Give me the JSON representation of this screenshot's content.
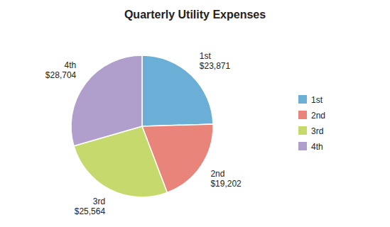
{
  "chart_data": {
    "type": "pie",
    "title": "Quarterly Utility Expenses",
    "categories": [
      "1st",
      "2nd",
      "3rd",
      "4th"
    ],
    "values": [
      23871,
      19202,
      25564,
      28704
    ],
    "value_labels": [
      "$23,871",
      "$19,202",
      "$25,564",
      "$28,704"
    ],
    "colors": [
      "#6baed6",
      "#e8847a",
      "#c5d96d",
      "#b09fcc"
    ],
    "data_labels": true,
    "legend": "right"
  }
}
